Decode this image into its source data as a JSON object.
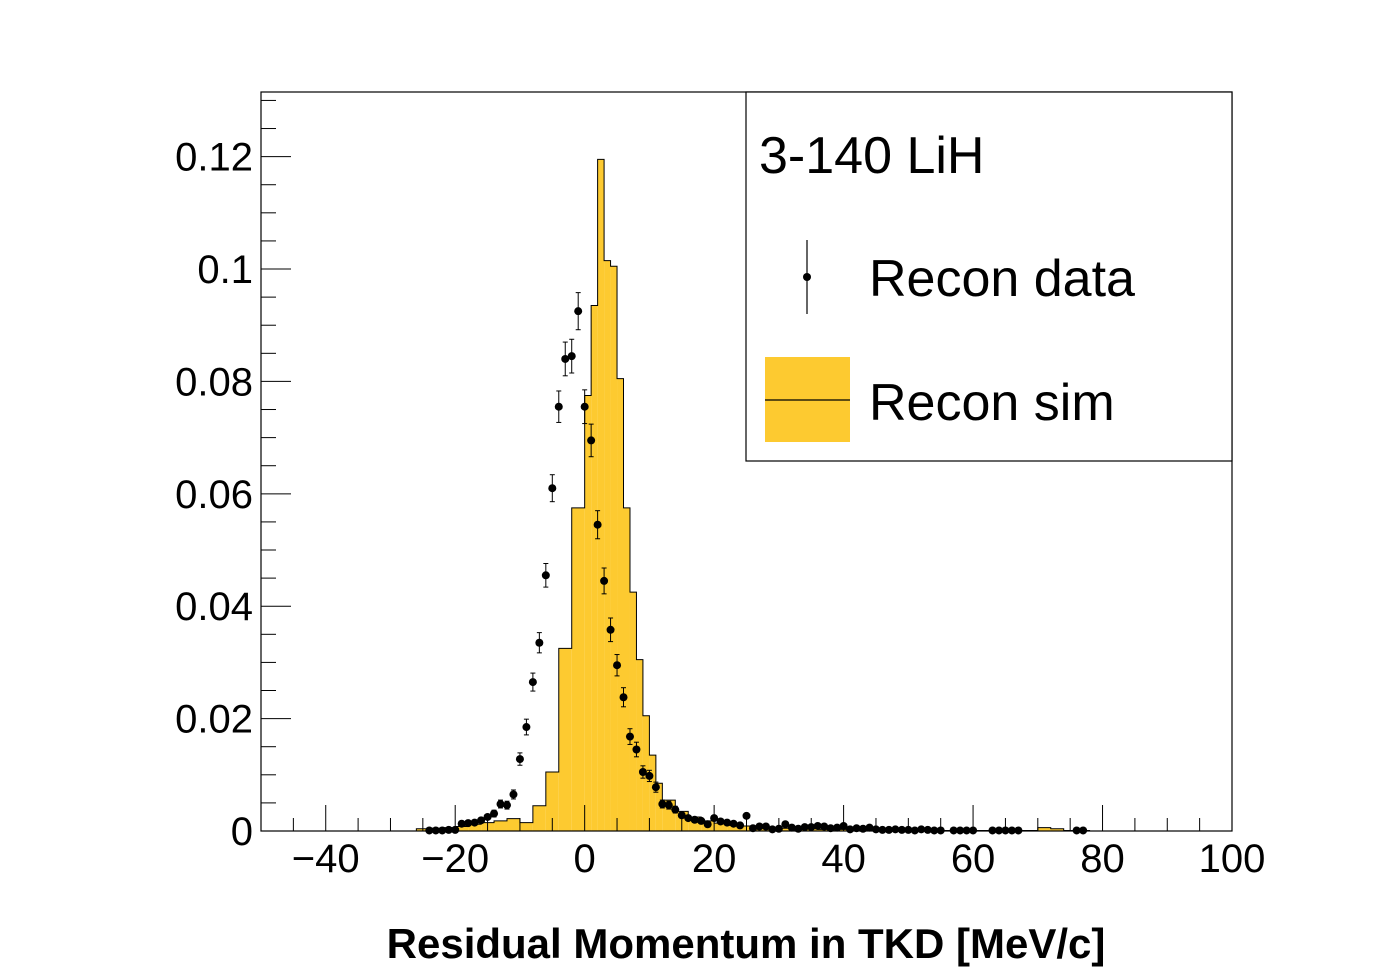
{
  "chart_data": {
    "type": "histogram",
    "title": "",
    "xlabel": "Residual Momentum in TKD [MeV/c]",
    "ylabel": "",
    "xlim": [
      -50,
      100
    ],
    "ylim": [
      0,
      0.1315
    ],
    "x_major_ticks": [
      -40,
      -20,
      0,
      20,
      40,
      60,
      80,
      100
    ],
    "x_tick_labels": [
      "−40",
      "−20",
      "0",
      "20",
      "40",
      "60",
      "80",
      "100"
    ],
    "y_major_ticks": [
      0,
      0.02,
      0.04,
      0.06,
      0.08,
      0.1,
      0.12
    ],
    "y_tick_labels": [
      "0",
      "0.02",
      "0.04",
      "0.06",
      "0.08",
      "0.1",
      "0.12"
    ],
    "legend": {
      "placement": "top-right",
      "header": "3-140 LiH",
      "entries": [
        {
          "label": "Recon data",
          "style": "markers-with-error-bars"
        },
        {
          "label": "Recon sim",
          "style": "filled-histogram"
        }
      ]
    },
    "colors": {
      "sim_fill": "#FDCA30",
      "data_marker": "#000000",
      "frame": "#000000"
    },
    "series": [
      {
        "name": "Recon sim",
        "kind": "step-histogram",
        "bin_edges": [
          -26,
          -24,
          -22,
          -20,
          -18,
          -16,
          -14,
          -12,
          -10,
          -8,
          -6,
          -4,
          -2,
          0,
          1,
          2,
          3,
          4,
          5,
          6,
          7,
          8,
          9,
          10,
          11,
          12,
          14,
          16,
          18,
          20,
          22,
          24,
          26,
          28,
          30,
          32,
          36,
          40,
          44,
          48,
          52,
          56,
          60,
          64,
          68,
          70,
          72,
          74,
          76,
          78
        ],
        "values": [
          0.0004,
          0.0005,
          0.0006,
          0.0008,
          0.0012,
          0.0015,
          0.0018,
          0.0022,
          0.0015,
          0.0045,
          0.0105,
          0.0325,
          0.0575,
          0.0775,
          0.0935,
          0.1195,
          0.1015,
          0.1005,
          0.0805,
          0.0575,
          0.0425,
          0.0305,
          0.0205,
          0.0135,
          0.0085,
          0.0055,
          0.0035,
          0.0025,
          0.0018,
          0.0014,
          0.001,
          0.0009,
          0.0007,
          0.0006,
          0.0005,
          0.0004,
          0.0003,
          0.0003,
          0.0002,
          0.0002,
          0.0001,
          0.0001,
          0.0001,
          0.0001,
          0.0001,
          0.0006,
          0.0004,
          0.0001,
          0.0001
        ]
      },
      {
        "name": "Recon data",
        "kind": "points-with-errors",
        "x": [
          -24,
          -23,
          -22,
          -21,
          -20,
          -19,
          -18,
          -17,
          -16,
          -15,
          -14,
          -13,
          -12,
          -11,
          -10,
          -9,
          -8,
          -7,
          -6,
          -5,
          -4,
          -3,
          -2,
          -1,
          0,
          1,
          2,
          3,
          4,
          5,
          6,
          7,
          8,
          9,
          10,
          11,
          12,
          13,
          14,
          15,
          16,
          17,
          18,
          19,
          20,
          21,
          22,
          23,
          24,
          25,
          26,
          27,
          28,
          29,
          30,
          31,
          32,
          33,
          34,
          35,
          36,
          37,
          38,
          39,
          40,
          41,
          42,
          43,
          44,
          45,
          46,
          47,
          48,
          49,
          50,
          51,
          52,
          53,
          54,
          55,
          57,
          58,
          59,
          60,
          63,
          64,
          65,
          66,
          67,
          76,
          77
        ],
        "y": [
          0.0001,
          0.0001,
          0.0001,
          0.0002,
          0.0002,
          0.0013,
          0.0014,
          0.0015,
          0.0019,
          0.0025,
          0.0031,
          0.0048,
          0.0046,
          0.0065,
          0.0128,
          0.0185,
          0.0265,
          0.0335,
          0.0455,
          0.061,
          0.0755,
          0.084,
          0.0845,
          0.0925,
          0.0755,
          0.0695,
          0.0545,
          0.0445,
          0.0358,
          0.0295,
          0.0238,
          0.0168,
          0.0145,
          0.0105,
          0.0098,
          0.0078,
          0.0048,
          0.0046,
          0.0038,
          0.0028,
          0.0023,
          0.002,
          0.0018,
          0.0012,
          0.0023,
          0.0017,
          0.0015,
          0.0013,
          0.001,
          0.0027,
          0.0005,
          0.0008,
          0.0008,
          0.0003,
          0.0004,
          0.0012,
          0.0006,
          0.0004,
          0.0007,
          0.0007,
          0.0009,
          0.0008,
          0.0005,
          0.0006,
          0.0009,
          0.0003,
          0.0005,
          0.0004,
          0.0006,
          0.0003,
          0.0002,
          0.0002,
          0.0003,
          0.0002,
          0.0002,
          0.0001,
          0.0003,
          0.0002,
          0.0001,
          0.0001,
          0.0001,
          0.0001,
          0.0001,
          0.0001,
          0.0001,
          0.0001,
          0.0001,
          0.0001,
          0.0001,
          0.0001,
          0.0001
        ],
        "err": [
          0.0001,
          0.0001,
          0.0001,
          0.0002,
          0.0002,
          0.0004,
          0.0004,
          0.0004,
          0.0004,
          0.0005,
          0.0006,
          0.0007,
          0.0007,
          0.0008,
          0.0011,
          0.0014,
          0.0016,
          0.0018,
          0.0021,
          0.0024,
          0.0028,
          0.003,
          0.003,
          0.0033,
          0.003,
          0.0029,
          0.0025,
          0.0023,
          0.0021,
          0.0019,
          0.0017,
          0.0014,
          0.0013,
          0.0011,
          0.001,
          0.0009,
          0.0007,
          0.0007,
          0.0006,
          0.0005,
          0.0005,
          0.0005,
          0.0004,
          0.0003,
          0.0005,
          0.0004,
          0.0004,
          0.0004,
          0.0003,
          0.0005,
          0.0002,
          0.0003,
          0.0003,
          0.0002,
          0.0002,
          0.0003,
          0.0002,
          0.0002,
          0.0003,
          0.0003,
          0.0003,
          0.0003,
          0.0002,
          0.0002,
          0.0003,
          0.0002,
          0.0002,
          0.0002,
          0.0002,
          0.0002,
          0.0001,
          0.0001,
          0.0002,
          0.0001,
          0.0001,
          0.0001,
          0.0002,
          0.0001,
          0.0001,
          0.0001,
          0.0001,
          0.0001,
          0.0001,
          0.0001,
          0.0001,
          0.0001,
          0.0001,
          0.0001,
          0.0001,
          0.0001,
          0.0001
        ]
      }
    ]
  }
}
